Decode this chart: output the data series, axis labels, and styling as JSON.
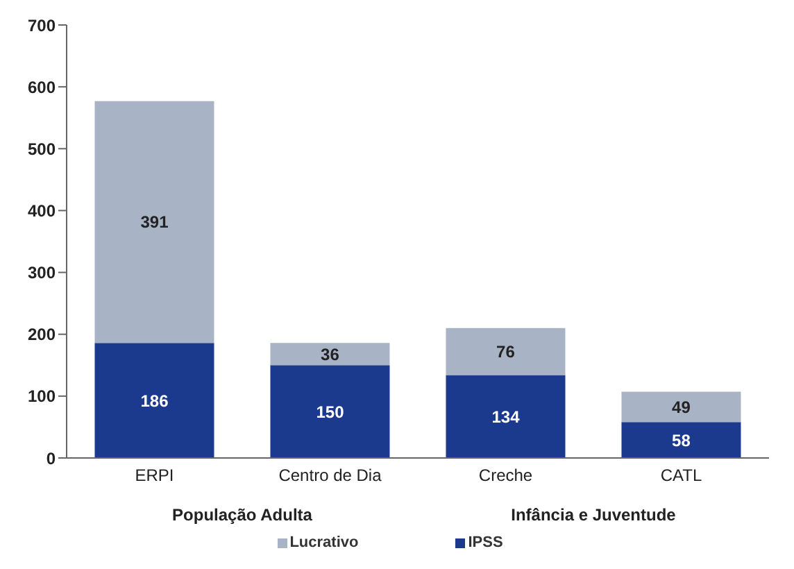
{
  "chart_data": {
    "type": "bar",
    "stacked": true,
    "categories": [
      "ERPI",
      "Centro de Dia",
      "Creche",
      "CATL"
    ],
    "series": [
      {
        "name": "IPSS",
        "color": "#1b3a8e",
        "values": [
          186,
          150,
          134,
          58
        ]
      },
      {
        "name": "Lucrativo",
        "color": "#a9b3c6",
        "values": [
          391,
          36,
          76,
          49
        ]
      }
    ],
    "ylim": [
      0,
      700
    ],
    "yticks": [
      0,
      100,
      200,
      300,
      400,
      500,
      600,
      700
    ],
    "data_labels": true,
    "legend": "bottom",
    "annotations": [
      "População Adulta",
      "Infância e Juventude"
    ]
  }
}
